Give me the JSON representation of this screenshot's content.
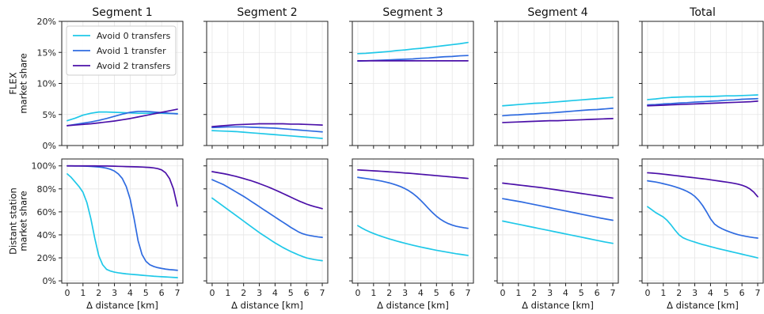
{
  "chart_data": {
    "type": "line",
    "panel_titles": [
      "Segment 1",
      "Segment 2",
      "Segment 3",
      "Segment 4",
      "Total"
    ],
    "xlabel": "Δ distance [km]",
    "x_ticks": [
      "0",
      "1",
      "2",
      "3",
      "4",
      "5",
      "6",
      "7"
    ],
    "xlim": [
      -0.35,
      7.35
    ],
    "grid": true,
    "legend": {
      "placement": "upper-left of first panel",
      "entries": [
        "Avoid 0 transfers",
        "Avoid 1 transfer",
        "Avoid 2 transfers"
      ]
    },
    "series_colors": [
      "#1fc8e8",
      "#2f6be0",
      "#4b10a8"
    ],
    "rows": [
      {
        "ylabel_lines": [
          "FLEX",
          "market share"
        ],
        "ylim": [
          0,
          20
        ],
        "y_ticks": [
          "0%",
          "5%",
          "10%",
          "15%",
          "20%"
        ],
        "y_tick_values": [
          0,
          5,
          10,
          15,
          20
        ],
        "x": [
          0,
          0.5,
          1,
          1.5,
          2,
          2.5,
          3,
          3.5,
          4,
          4.5,
          5,
          5.5,
          6,
          6.5,
          7
        ],
        "panels": [
          {
            "series": [
              [
                4.0,
                4.4,
                4.9,
                5.2,
                5.4,
                5.4,
                5.35,
                5.3,
                5.25,
                5.2,
                5.2,
                5.2,
                5.2,
                5.15,
                5.15
              ],
              [
                3.2,
                3.4,
                3.6,
                3.8,
                4.05,
                4.35,
                4.7,
                5.05,
                5.35,
                5.5,
                5.5,
                5.4,
                5.3,
                5.2,
                5.1
              ],
              [
                3.2,
                3.3,
                3.4,
                3.5,
                3.65,
                3.8,
                3.95,
                4.15,
                4.35,
                4.6,
                4.85,
                5.1,
                5.35,
                5.6,
                5.85
              ]
            ]
          },
          {
            "series": [
              [
                2.4,
                2.35,
                2.3,
                2.25,
                2.15,
                2.05,
                1.95,
                1.85,
                1.75,
                1.65,
                1.55,
                1.45,
                1.35,
                1.25,
                1.15
              ],
              [
                2.9,
                2.95,
                3.0,
                3.0,
                3.0,
                2.95,
                2.9,
                2.85,
                2.8,
                2.7,
                2.6,
                2.5,
                2.4,
                2.3,
                2.2
              ],
              [
                3.05,
                3.15,
                3.25,
                3.35,
                3.4,
                3.45,
                3.5,
                3.5,
                3.5,
                3.5,
                3.45,
                3.45,
                3.4,
                3.35,
                3.3
              ]
            ]
          },
          {
            "series": [
              [
                14.8,
                14.85,
                14.95,
                15.05,
                15.15,
                15.3,
                15.4,
                15.55,
                15.65,
                15.8,
                15.95,
                16.1,
                16.25,
                16.4,
                16.6
              ],
              [
                13.6,
                13.65,
                13.7,
                13.75,
                13.8,
                13.85,
                13.9,
                13.95,
                14.05,
                14.1,
                14.2,
                14.3,
                14.35,
                14.45,
                14.5
              ],
              [
                13.65,
                13.65,
                13.65,
                13.65,
                13.65,
                13.65,
                13.65,
                13.65,
                13.65,
                13.65,
                13.65,
                13.65,
                13.65,
                13.65,
                13.65
              ]
            ]
          },
          {
            "series": [
              [
                6.4,
                6.5,
                6.6,
                6.7,
                6.8,
                6.85,
                6.95,
                7.05,
                7.15,
                7.25,
                7.35,
                7.45,
                7.55,
                7.65,
                7.75
              ],
              [
                4.8,
                4.9,
                4.95,
                5.05,
                5.1,
                5.2,
                5.25,
                5.35,
                5.45,
                5.55,
                5.65,
                5.75,
                5.8,
                5.9,
                6.0
              ],
              [
                3.7,
                3.75,
                3.8,
                3.85,
                3.9,
                3.95,
                4.0,
                4.0,
                4.05,
                4.1,
                4.15,
                4.2,
                4.25,
                4.3,
                4.35
              ]
            ]
          },
          {
            "series": [
              [
                7.4,
                7.5,
                7.65,
                7.75,
                7.8,
                7.85,
                7.85,
                7.9,
                7.9,
                7.95,
                8.0,
                8.0,
                8.05,
                8.1,
                8.15
              ],
              [
                6.55,
                6.6,
                6.7,
                6.75,
                6.85,
                6.9,
                7.0,
                7.05,
                7.15,
                7.2,
                7.3,
                7.35,
                7.45,
                7.5,
                7.55
              ],
              [
                6.4,
                6.45,
                6.5,
                6.55,
                6.6,
                6.65,
                6.7,
                6.75,
                6.8,
                6.85,
                6.9,
                6.95,
                7.0,
                7.05,
                7.15
              ]
            ]
          }
        ]
      },
      {
        "ylabel_lines": [
          "Distant station",
          "market share"
        ],
        "ylim": [
          -2,
          106
        ],
        "y_ticks": [
          "0%",
          "20%",
          "40%",
          "60%",
          "80%",
          "100%"
        ],
        "y_tick_values": [
          0,
          20,
          40,
          60,
          80,
          100
        ],
        "x": [
          0,
          0.25,
          0.5,
          0.75,
          1,
          1.25,
          1.5,
          1.75,
          2,
          2.25,
          2.5,
          2.75,
          3,
          3.25,
          3.5,
          3.75,
          4,
          4.25,
          4.5,
          4.75,
          5,
          5.25,
          5.5,
          5.75,
          6,
          6.25,
          6.5,
          6.75,
          7
        ],
        "panels": [
          {
            "series": [
              [
                93,
                90,
                86,
                82,
                77,
                68,
                54,
                37,
                22,
                14,
                10,
                8.5,
                7.6,
                7.0,
                6.5,
                6.1,
                5.8,
                5.5,
                5.2,
                4.9,
                4.6,
                4.3,
                4.0,
                3.8,
                3.6,
                3.4,
                3.2,
                3.0,
                2.8
              ],
              [
                100,
                100,
                99.9,
                99.9,
                99.8,
                99.7,
                99.5,
                99.3,
                99.0,
                98.6,
                98.0,
                97.0,
                95.5,
                93,
                89,
                82,
                71,
                54,
                35,
                23,
                17,
                14,
                12.5,
                11.5,
                10.8,
                10.2,
                9.8,
                9.5,
                9.2
              ],
              [
                100,
                100,
                100,
                100,
                100,
                100,
                100,
                100,
                99.9,
                99.9,
                99.9,
                99.8,
                99.7,
                99.6,
                99.5,
                99.4,
                99.3,
                99.2,
                99.1,
                99.0,
                98.8,
                98.6,
                98.2,
                97.6,
                96.5,
                94,
                89,
                80,
                65
              ]
            ]
          },
          {
            "series": [
              [
                72,
                69.5,
                67,
                64.5,
                62,
                59.5,
                57,
                54.5,
                52,
                49.5,
                47,
                44.5,
                42,
                39.7,
                37.5,
                35.2,
                33,
                31,
                29,
                27.2,
                25.5,
                24,
                22.5,
                21.2,
                20,
                19.2,
                18.5,
                18,
                17.5
              ],
              [
                88,
                86.5,
                85,
                83.5,
                81.5,
                79.5,
                77.5,
                75.5,
                73.5,
                71.3,
                69,
                66.8,
                64.5,
                62.2,
                60,
                57.7,
                55.5,
                53.2,
                51,
                48.8,
                46.5,
                44.5,
                42.5,
                41,
                40,
                39.3,
                38.7,
                38.2,
                37.8
              ],
              [
                95,
                94.4,
                93.8,
                93.2,
                92.5,
                91.7,
                90.9,
                90,
                89,
                88,
                87,
                85.8,
                84.6,
                83.3,
                82,
                80.6,
                79.1,
                77.6,
                76,
                74.4,
                72.8,
                71.2,
                69.6,
                68.2,
                66.8,
                65.6,
                64.6,
                63.7,
                62.8
              ]
            ]
          },
          {
            "series": [
              [
                48,
                46,
                44.2,
                42.6,
                41.2,
                39.9,
                38.7,
                37.6,
                36.5,
                35.5,
                34.5,
                33.6,
                32.7,
                31.8,
                31,
                30.2,
                29.4,
                28.7,
                28,
                27.3,
                26.6,
                26,
                25.4,
                24.8,
                24.2,
                23.6,
                23.1,
                22.6,
                22.1
              ],
              [
                90,
                89.5,
                89,
                88.5,
                88,
                87.4,
                86.8,
                86,
                85.2,
                84.2,
                83.1,
                81.8,
                80.2,
                78.3,
                76,
                73.2,
                70,
                66.5,
                62.8,
                59.3,
                56.2,
                53.6,
                51.5,
                49.8,
                48.5,
                47.5,
                46.8,
                46.2,
                45.7
              ],
              [
                96.5,
                96.3,
                96.1,
                95.9,
                95.7,
                95.5,
                95.3,
                95.1,
                94.8,
                94.6,
                94.4,
                94.1,
                93.8,
                93.6,
                93.3,
                93,
                92.7,
                92.4,
                92.1,
                91.8,
                91.5,
                91.2,
                90.9,
                90.6,
                90.3,
                90,
                89.7,
                89.4,
                89.1
              ]
            ]
          },
          {
            "series": [
              [
                52,
                51.3,
                50.6,
                49.9,
                49.2,
                48.5,
                47.8,
                47.1,
                46.4,
                45.7,
                45,
                44.3,
                43.6,
                42.9,
                42.2,
                41.5,
                40.8,
                40.1,
                39.4,
                38.7,
                38,
                37.3,
                36.6,
                35.9,
                35.2,
                34.5,
                33.8,
                33.2,
                32.6
              ],
              [
                71.5,
                70.9,
                70.3,
                69.7,
                69.1,
                68.5,
                67.8,
                67.1,
                66.4,
                65.7,
                65,
                64.3,
                63.6,
                62.9,
                62.2,
                61.5,
                60.8,
                60.1,
                59.4,
                58.7,
                58,
                57.3,
                56.6,
                55.9,
                55.2,
                54.5,
                53.9,
                53.3,
                52.7
              ],
              [
                85,
                84.6,
                84.2,
                83.8,
                83.4,
                83,
                82.6,
                82.2,
                81.8,
                81.4,
                81,
                80.5,
                80,
                79.5,
                79,
                78.5,
                78,
                77.5,
                77,
                76.5,
                76,
                75.5,
                75,
                74.5,
                74,
                73.5,
                73,
                72.5,
                72
              ]
            ]
          },
          {
            "series": [
              [
                64.5,
                62,
                59.5,
                57.5,
                55.5,
                52.5,
                48.5,
                44,
                40,
                37.5,
                36,
                34.8,
                33.7,
                32.6,
                31.6,
                30.7,
                29.8,
                28.9,
                28,
                27.2,
                26.4,
                25.6,
                24.8,
                24,
                23.2,
                22.4,
                21.6,
                20.8,
                20
              ],
              [
                87,
                86.5,
                86,
                85.3,
                84.5,
                83.7,
                82.8,
                81.8,
                80.7,
                79.4,
                77.9,
                76,
                73.5,
                70,
                65.5,
                60,
                54,
                49.5,
                47,
                45.2,
                43.7,
                42.4,
                41.2,
                40.2,
                39.4,
                38.7,
                38.1,
                37.6,
                37.2
              ],
              [
                94,
                93.8,
                93.5,
                93.2,
                92.8,
                92.4,
                92,
                91.6,
                91.2,
                90.8,
                90.4,
                90,
                89.6,
                89.2,
                88.8,
                88.4,
                87.9,
                87.4,
                86.9,
                86.4,
                85.9,
                85.4,
                84.8,
                84.1,
                83.2,
                81.9,
                80,
                77.2,
                73.2
              ]
            ]
          }
        ]
      }
    ]
  }
}
